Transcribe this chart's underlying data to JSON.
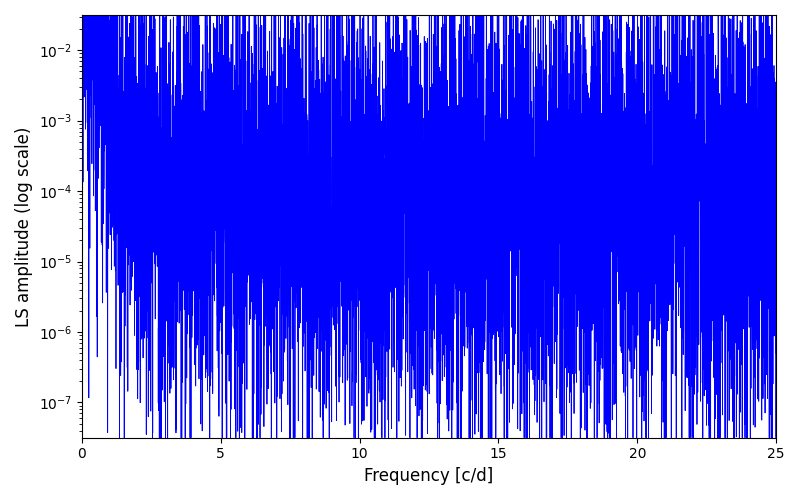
{
  "title": "",
  "xlabel": "Frequency [c/d]",
  "ylabel": "LS amplitude (log scale)",
  "line_color": "#0000FF",
  "line_width": 0.6,
  "xlim": [
    0,
    25
  ],
  "ylim_min_log": -7.5,
  "ylim_max_log": -1.5,
  "freq_max": 25.0,
  "n_points": 8000,
  "seed": 1234,
  "background_color": "#ffffff",
  "figsize": [
    8.0,
    5.0
  ],
  "dpi": 100
}
